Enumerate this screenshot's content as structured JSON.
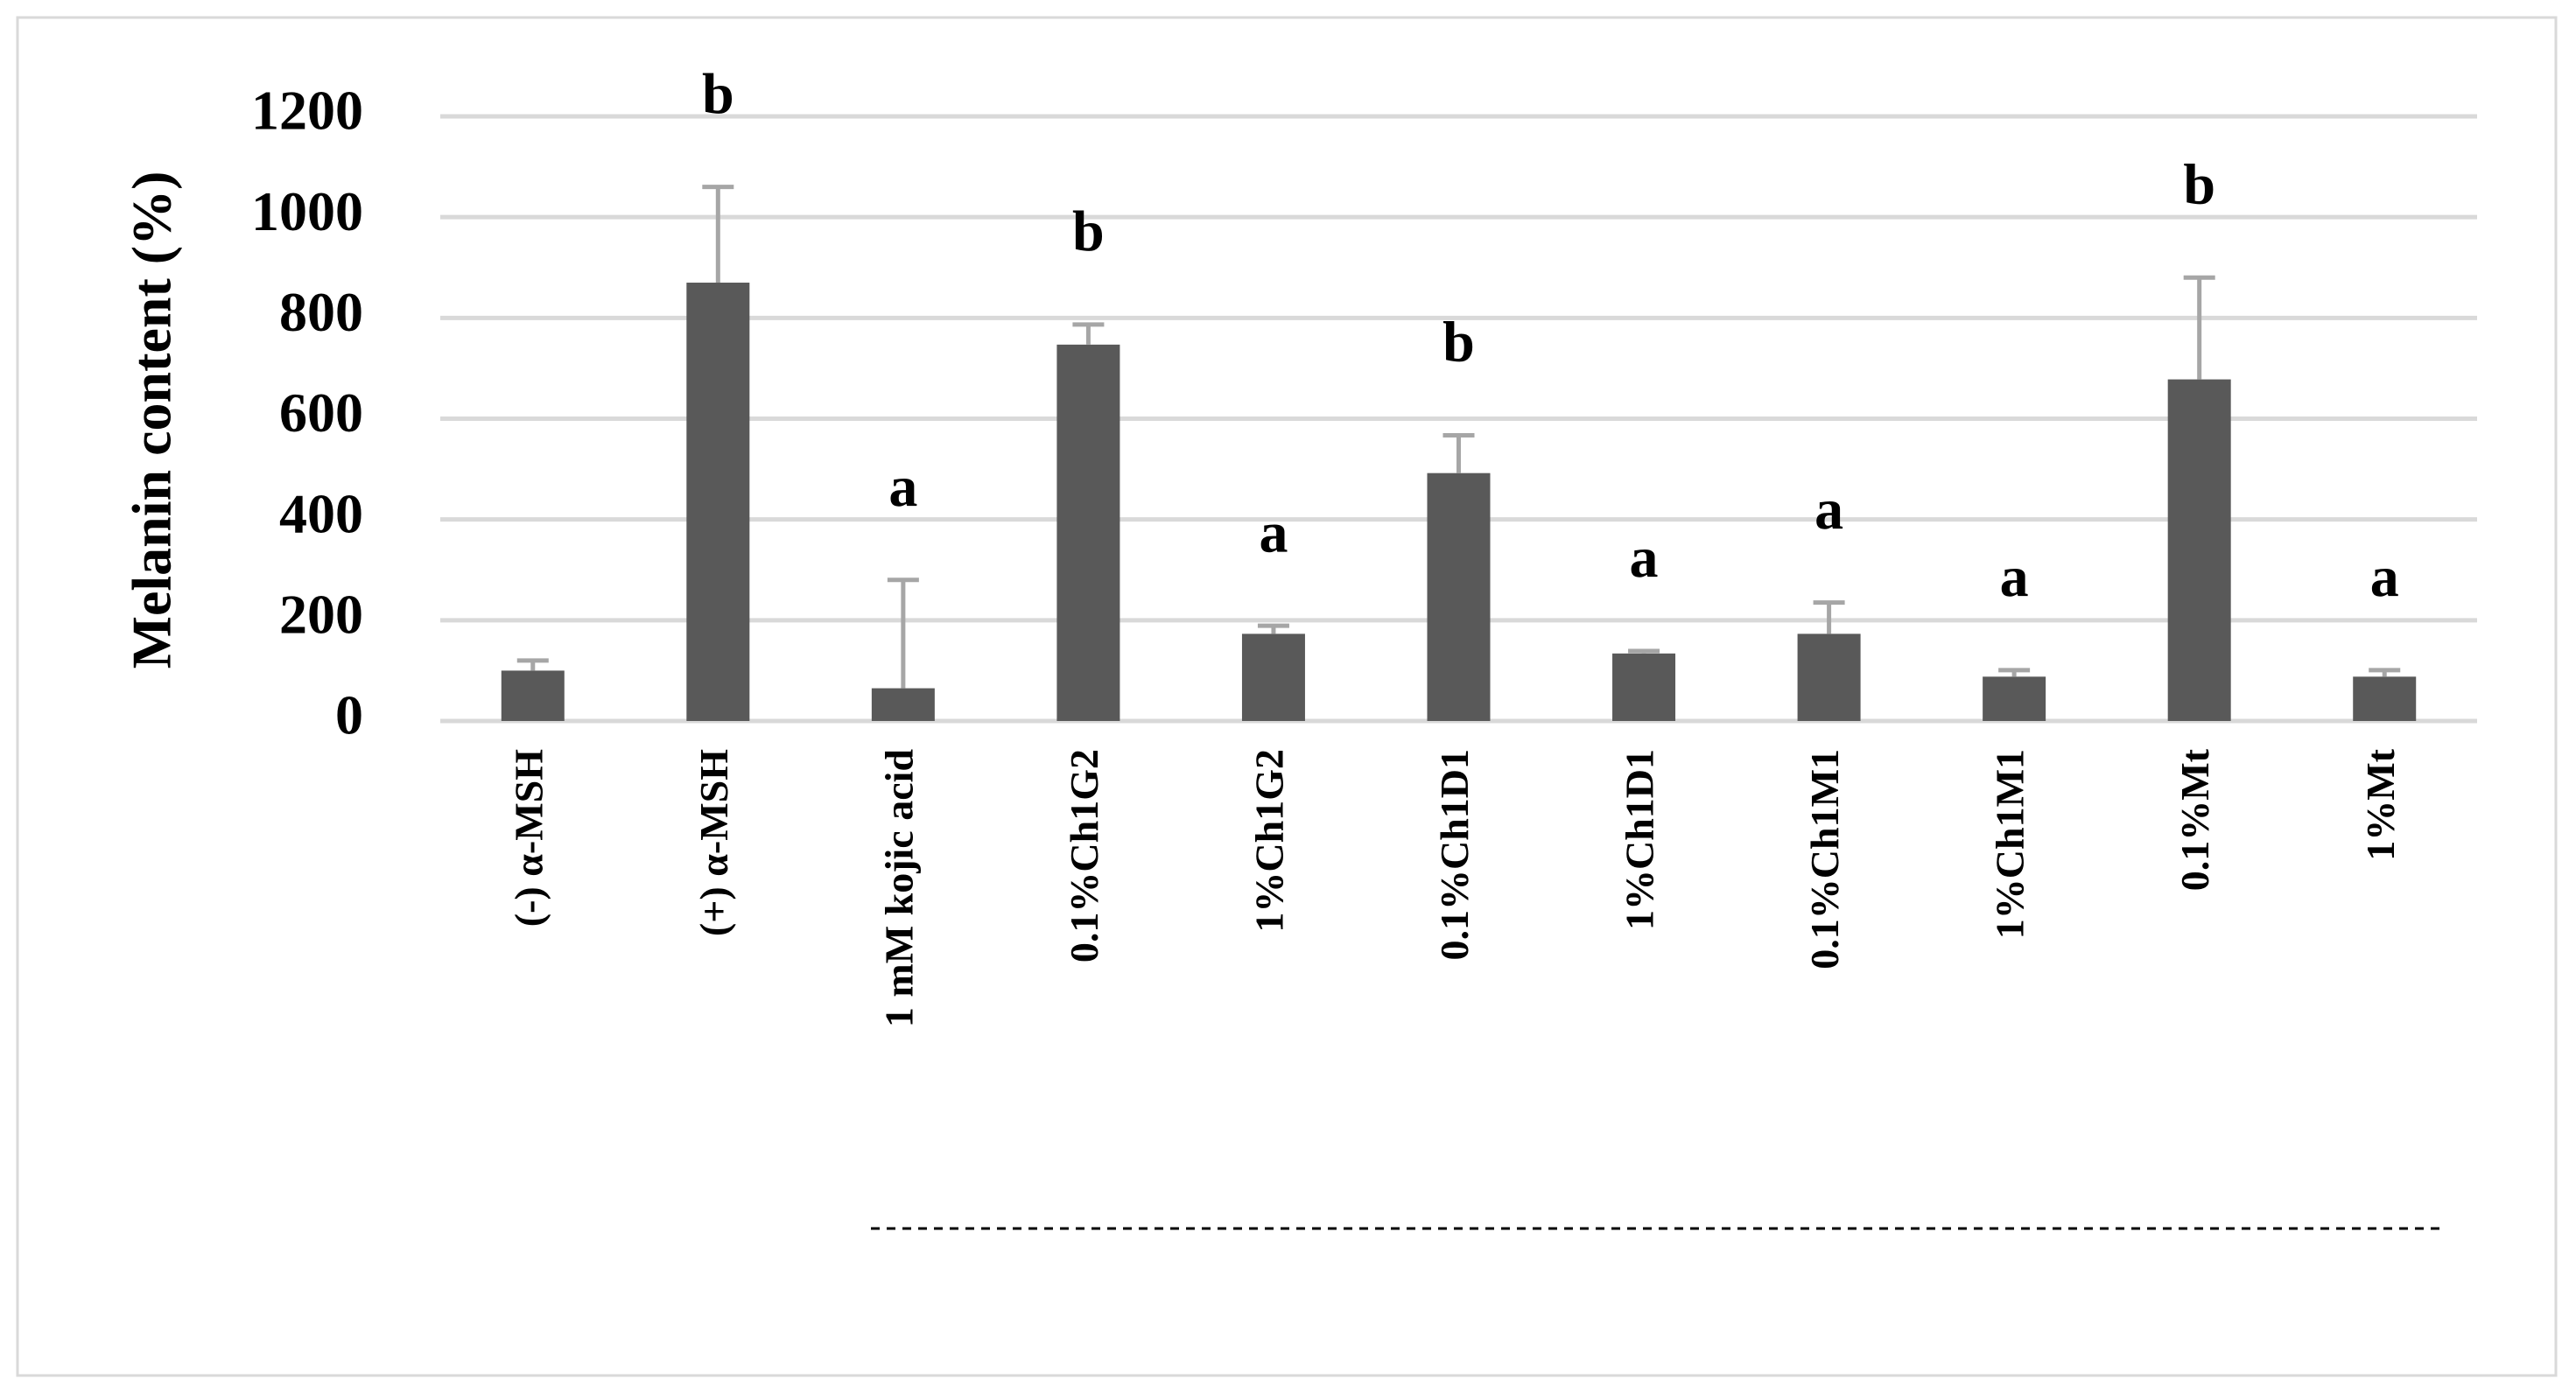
{
  "chart_data": {
    "type": "bar",
    "y_label": "Melanin content (%)",
    "categories": [
      "(-) α-MSH",
      "(+) α-MSH",
      "1 mM kojic acid",
      "0.1%Ch1G2",
      "1%Ch1G2",
      "0.1%Ch1D1",
      "1%Ch1D1",
      "0.1%Ch1M1",
      "1%Ch1M1",
      "0.1%Mt",
      "1%Mt"
    ],
    "values": [
      100,
      870,
      65,
      747,
      173,
      492,
      134,
      173,
      88,
      678,
      88
    ],
    "errors": [
      20,
      190,
      215,
      40,
      16,
      75,
      5,
      62,
      13,
      202,
      13
    ],
    "annotations": [
      null,
      "b",
      "a",
      "b",
      "a",
      "b",
      "a",
      "a",
      "a",
      "b",
      "a"
    ],
    "color": "#595959",
    "error_color": "#a6a6a6",
    "ylim": [
      0,
      1200
    ],
    "yticks": [
      0,
      200,
      400,
      600,
      800,
      1000,
      1200
    ],
    "grid": true
  }
}
